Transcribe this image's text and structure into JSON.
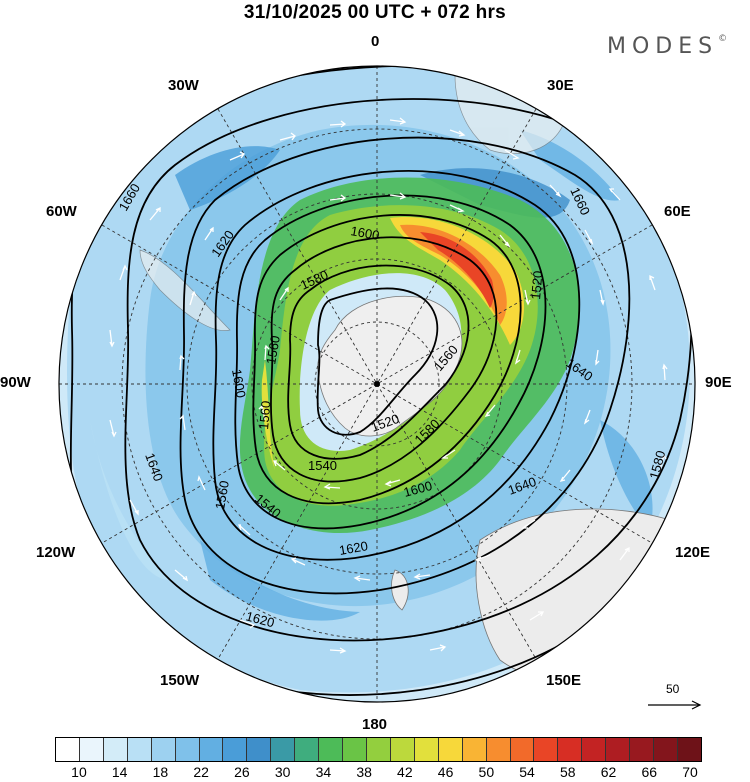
{
  "title": "31/10/2025  00 UTC  + 072 hrs",
  "brand": "MODES",
  "brand_mark": "©",
  "longitude_labels": {
    "lon_0": "0",
    "lon_30e": "30E",
    "lon_60e": "60E",
    "lon_90e": "90E",
    "lon_120e": "120E",
    "lon_150e": "150E",
    "lon_180": "180",
    "lon_150w": "150W",
    "lon_120w": "120W",
    "lon_90w": "90W",
    "lon_60w": "60W",
    "lon_30w": "30W"
  },
  "contour_labels": [
    "1660",
    "1640",
    "1620",
    "1600",
    "1580",
    "1560",
    "1540",
    "1520",
    "1560",
    "1580",
    "1600",
    "1620",
    "1640",
    "1660",
    "1640",
    "1620",
    "1600",
    "1560",
    "1520",
    "1540",
    "1560",
    "1580",
    "1600",
    "1620",
    "1640",
    "1560",
    "1640"
  ],
  "vector_scale_label": "50",
  "colorbar": {
    "labels": [
      "10",
      "14",
      "18",
      "22",
      "26",
      "30",
      "34",
      "38",
      "42",
      "46",
      "50",
      "54",
      "58",
      "62",
      "66",
      "70"
    ],
    "colors": [
      "#ffffff",
      "#eaf5fc",
      "#d3ecf8",
      "#b9e0f5",
      "#9dd1f0",
      "#7fc1ea",
      "#62afe2",
      "#4a9dd8",
      "#3f8fca",
      "#3a9aa6",
      "#3fad7e",
      "#4dbb58",
      "#6ac446",
      "#93cf3e",
      "#bcd93c",
      "#e2e03c",
      "#f7d83a",
      "#f9b434",
      "#f78d2f",
      "#f26a2a",
      "#e94526",
      "#d72e24",
      "#c32323",
      "#ae1d22",
      "#98191f",
      "#83151c",
      "#6e1218"
    ]
  },
  "map_colors": {
    "land": "#eeeeee",
    "coast": "#777777",
    "contour": "#000000",
    "vector": "#ffffff"
  }
}
